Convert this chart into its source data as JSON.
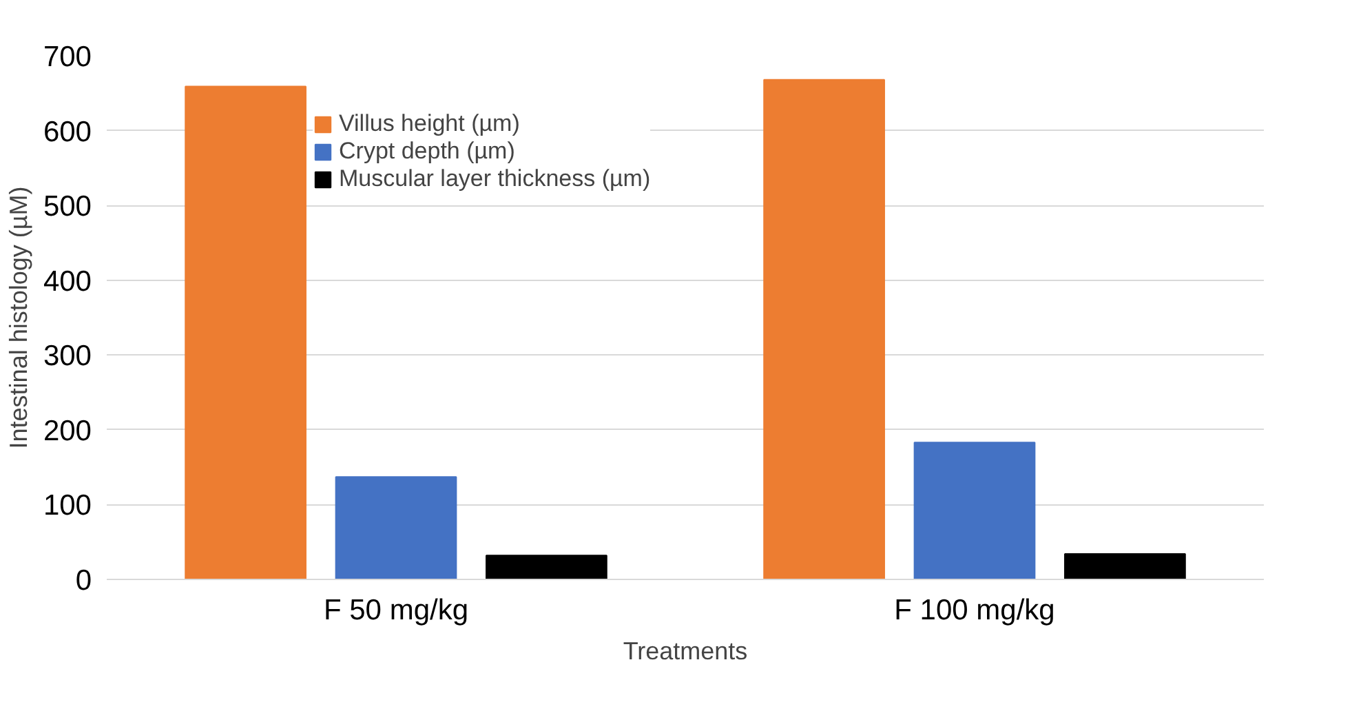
{
  "chart_data": {
    "type": "bar",
    "xlabel": "Treatments",
    "ylabel": "Intestinal histology (µM)",
    "categories": [
      "F 50 mg/kg",
      "F 100 mg/kg"
    ],
    "series": [
      {
        "name": "Villus height (µm)",
        "color": "#ed7d31",
        "values": [
          659,
          668
        ]
      },
      {
        "name": "Crypt depth (µm)",
        "color": "#4472c4",
        "values": [
          137,
          183
        ]
      },
      {
        "name": "Muscular layer thickness (µm)",
        "color": "#000000",
        "values": [
          32,
          34
        ]
      }
    ],
    "ylim": [
      0,
      700
    ],
    "yticks": [
      0,
      100,
      200,
      300,
      400,
      500,
      600,
      700
    ],
    "grid": "y",
    "legend": "top"
  }
}
